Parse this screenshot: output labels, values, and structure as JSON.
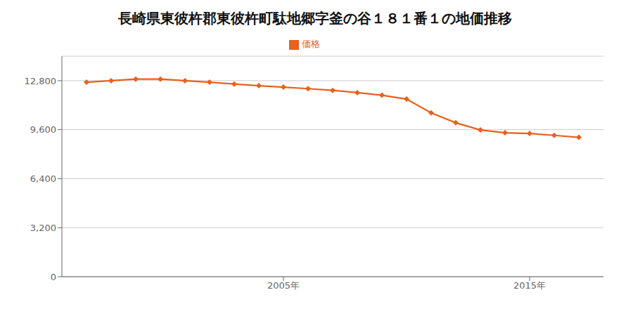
{
  "chart_data": {
    "type": "line",
    "title": "長崎県東彼杵郡東彼杵町駄地郷字釜の谷１８１番１の地価推移",
    "x": [
      1997,
      1998,
      1999,
      2000,
      2001,
      2002,
      2003,
      2004,
      2005,
      2006,
      2007,
      2008,
      2009,
      2010,
      2011,
      2012,
      2013,
      2014,
      2015,
      2016,
      2017
    ],
    "series": [
      {
        "name": "価格",
        "color": "#e8601c",
        "marker": "diamond",
        "values": [
          12700,
          12800,
          12900,
          12900,
          12800,
          12700,
          12580,
          12470,
          12380,
          12280,
          12170,
          12020,
          11850,
          11600,
          10700,
          10050,
          9580,
          9400,
          9350,
          9230,
          9100
        ]
      }
    ],
    "xlim": [
      1996,
      2018
    ],
    "xticks": [
      {
        "value": 2005,
        "label": "2005年"
      },
      {
        "value": 2015,
        "label": "2015年"
      }
    ],
    "ylim": [
      0,
      14400
    ],
    "yticks": [
      0,
      {
        "value": 3200,
        "label": "3,200"
      },
      {
        "value": 6400,
        "label": "6,400"
      },
      {
        "value": 9600,
        "label": "9,600"
      },
      {
        "value": 12800,
        "label": "12,800"
      }
    ],
    "grid": true,
    "legend": "top"
  }
}
